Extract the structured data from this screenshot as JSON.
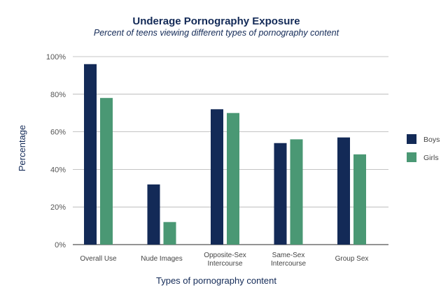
{
  "chart_data": {
    "type": "bar",
    "title": "Underage Pornography Exposure",
    "subtitle": "Percent of teens viewing different types of pornography content",
    "xlabel": "Types of pornography content",
    "ylabel": "Percentage",
    "categories": [
      [
        "Overall Use"
      ],
      [
        "Nude Images"
      ],
      [
        "Opposite-Sex",
        "Intercourse"
      ],
      [
        "Same-Sex",
        "Intercourse"
      ],
      [
        "Group Sex"
      ]
    ],
    "series": [
      {
        "name": "Boys",
        "color": "#132a57",
        "values": [
          96,
          32,
          72,
          54,
          57
        ]
      },
      {
        "name": "Girls",
        "color": "#4a9874",
        "values": [
          78,
          12,
          70,
          56,
          48
        ]
      }
    ],
    "ylim": [
      0,
      100
    ],
    "yticks": [
      0,
      20,
      40,
      60,
      80,
      100
    ],
    "ytick_labels": [
      "0%",
      "20%",
      "40%",
      "60%",
      "80%",
      "100%"
    ],
    "grid": true,
    "legend_position": "right"
  },
  "colors": {
    "title": "#132a57",
    "subtitle": "#132a57",
    "axis_title": "#132a57",
    "tick_text": "#555555",
    "gridline": "#b0b0b0"
  }
}
